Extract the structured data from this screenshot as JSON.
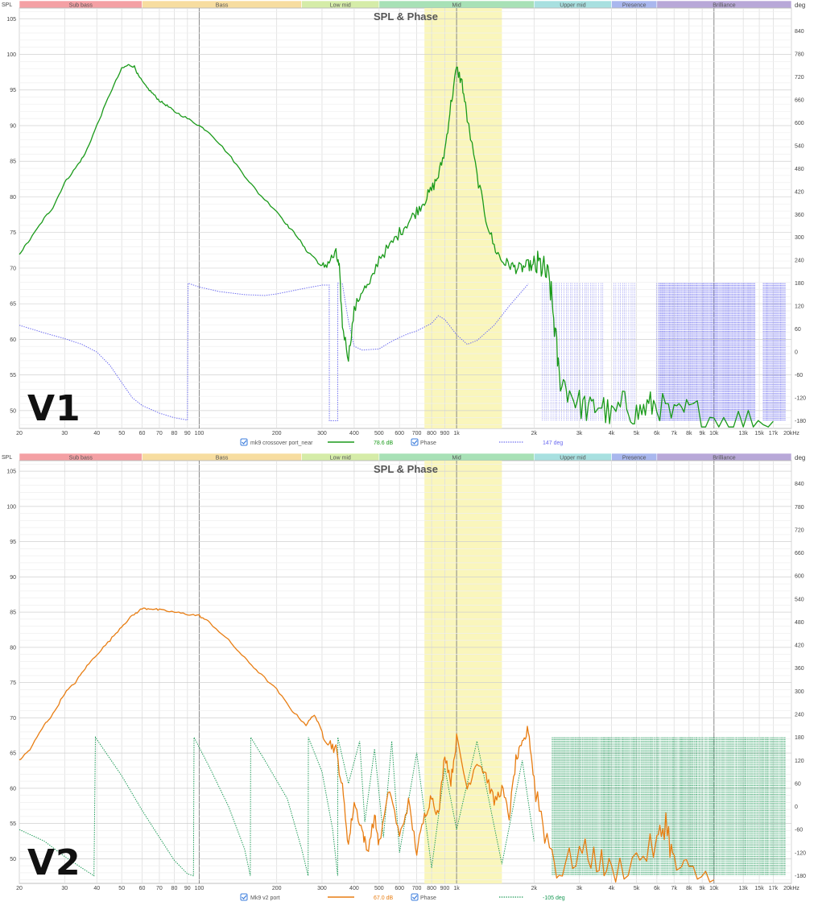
{
  "axis_labels": {
    "spl": "SPL",
    "deg": "deg"
  },
  "bands": [
    {
      "label": "Sub bass",
      "from": 20,
      "to": 60,
      "color": "#f4a0a4"
    },
    {
      "label": "Bass",
      "from": 60,
      "to": 250,
      "color": "#f7dda0"
    },
    {
      "label": "Low mid",
      "from": 250,
      "to": 500,
      "color": "#d5eca8"
    },
    {
      "label": "Mid",
      "from": 500,
      "to": 2000,
      "color": "#a8e1b6"
    },
    {
      "label": "Upper mid",
      "from": 2000,
      "to": 4000,
      "color": "#a8e0e0"
    },
    {
      "label": "Presence",
      "from": 4000,
      "to": 6000,
      "color": "#a9b7ee"
    },
    {
      "label": "Brilliance",
      "from": 6000,
      "to": 20000,
      "color": "#b8a8d8"
    }
  ],
  "x_ticks": [
    {
      "v": 20,
      "t": "20"
    },
    {
      "v": 30,
      "t": "30"
    },
    {
      "v": 40,
      "t": "40"
    },
    {
      "v": 50,
      "t": "50"
    },
    {
      "v": 60,
      "t": "60"
    },
    {
      "v": 70,
      "t": "70"
    },
    {
      "v": 80,
      "t": "80"
    },
    {
      "v": 90,
      "t": "90"
    },
    {
      "v": 100,
      "t": "100"
    },
    {
      "v": 200,
      "t": "200"
    },
    {
      "v": 300,
      "t": "300"
    },
    {
      "v": 400,
      "t": "400"
    },
    {
      "v": 500,
      "t": "500"
    },
    {
      "v": 600,
      "t": "600"
    },
    {
      "v": 700,
      "t": "700"
    },
    {
      "v": 800,
      "t": "800"
    },
    {
      "v": 900,
      "t": "900"
    },
    {
      "v": 1000,
      "t": "1k"
    },
    {
      "v": 2000,
      "t": "2k"
    },
    {
      "v": 3000,
      "t": "3k"
    },
    {
      "v": 4000,
      "t": "4k"
    },
    {
      "v": 5000,
      "t": "5k"
    },
    {
      "v": 6000,
      "t": "6k"
    },
    {
      "v": 7000,
      "t": "7k"
    },
    {
      "v": 8000,
      "t": "8k"
    },
    {
      "v": 9000,
      "t": "9k"
    },
    {
      "v": 10000,
      "t": "10k"
    },
    {
      "v": 13000,
      "t": "13k"
    },
    {
      "v": 15000,
      "t": "15k"
    },
    {
      "v": 17000,
      "t": "17k"
    },
    {
      "v": 20000,
      "t": "20kHz"
    }
  ],
  "charts": [
    {
      "title": "SPL & Phase",
      "version_label": "V1",
      "legend": {
        "trace_name": "mk9 crossover port_near",
        "trace_value": "78.6 dB",
        "phase_name": "Phase",
        "phase_value": "147 deg"
      }
    },
    {
      "title": "SPL & Phase",
      "version_label": "V2",
      "legend": {
        "trace_name": "Mk9 v2 port",
        "trace_value": "67.0 dB",
        "phase_name": "Phase",
        "phase_value": "-105 deg"
      }
    }
  ],
  "chart_data": [
    {
      "type": "line",
      "title": "SPL & Phase",
      "x_scale": "log",
      "xlim": [
        20,
        20000
      ],
      "ylim": [
        47.5,
        106.5
      ],
      "y2lim": [
        -200,
        900
      ],
      "y_ticks": [
        50,
        55,
        60,
        65,
        70,
        75,
        80,
        85,
        90,
        95,
        100,
        105
      ],
      "y2_ticks": [
        -180,
        -120,
        -60,
        0,
        60,
        120,
        180,
        240,
        300,
        360,
        420,
        480,
        540,
        600,
        660,
        720,
        780,
        840
      ],
      "highlight_range_hz": [
        750,
        1500
      ],
      "spl_color": "#1a9a1a",
      "phase_color": "#6a6af0",
      "series": [
        {
          "name": "mk9 crossover port_near",
          "style": "solid",
          "x": [
            20,
            22,
            25,
            27,
            30,
            33,
            36,
            40,
            45,
            50,
            53,
            56,
            58,
            62,
            66,
            70,
            75,
            80,
            90,
            100,
            110,
            130,
            150,
            170,
            200,
            220,
            240,
            260,
            280,
            300,
            320,
            340,
            350,
            360,
            380,
            400,
            430,
            460,
            500,
            550,
            600,
            650,
            700,
            750,
            800,
            850,
            900,
            950,
            1000,
            1050,
            1100,
            1200,
            1300,
            1400,
            1500,
            1600,
            1700,
            1800,
            1900,
            2000,
            2100,
            2200,
            2300,
            2400,
            2500,
            2700,
            3000,
            3300,
            3600,
            4000,
            4500,
            5000,
            5500,
            6000,
            7000,
            8000,
            10000,
            13000,
            17000
          ],
          "y": [
            72,
            74,
            77,
            78.5,
            82,
            84,
            86,
            90,
            94.5,
            98,
            98.5,
            98.3,
            97,
            95.5,
            94.5,
            93.5,
            92.8,
            92,
            91,
            90,
            89,
            86,
            83,
            80.5,
            78,
            76,
            74.5,
            72.5,
            71.5,
            70,
            71,
            72,
            70,
            62,
            57.5,
            64,
            67,
            67.5,
            71.5,
            73,
            75,
            76.5,
            78,
            79.5,
            81,
            83,
            86.5,
            93,
            98,
            96,
            91,
            83,
            77,
            73,
            71,
            70.5,
            70,
            70,
            70.5,
            70,
            70.5,
            69.5,
            68,
            62,
            55,
            53,
            51,
            50,
            51,
            49,
            51,
            49.5,
            50.5,
            51,
            49,
            50,
            49,
            48.5,
            48.5
          ]
        },
        {
          "name": "Phase",
          "style": "dotted",
          "x": [
            20,
            25,
            30,
            35,
            40,
            45,
            50,
            55,
            60,
            70,
            80,
            90,
            90.5,
            100,
            120,
            150,
            180,
            200,
            250,
            300,
            320,
            320.5,
            340,
            345,
            345.5,
            360,
            380,
            400,
            430,
            500,
            550,
            600,
            650,
            700,
            800,
            850,
            900,
            1000,
            1100,
            1200,
            1400,
            1600,
            1800,
            1900
          ],
          "y": [
            70,
            50,
            35,
            20,
            0,
            -35,
            -80,
            -120,
            -140,
            -160,
            -172,
            -178,
            180,
            170,
            158,
            150,
            148,
            152,
            165,
            175,
            175,
            -180,
            -180,
            -180,
            180,
            178,
            80,
            15,
            5,
            8,
            25,
            38,
            48,
            55,
            75,
            95,
            85,
            45,
            20,
            30,
            70,
            120,
            160,
            178
          ]
        }
      ]
    },
    {
      "type": "line",
      "title": "SPL & Phase",
      "x_scale": "log",
      "xlim": [
        20,
        20000
      ],
      "ylim": [
        46.5,
        106.5
      ],
      "y2lim": [
        -200,
        900
      ],
      "y_ticks": [
        50,
        55,
        60,
        65,
        70,
        75,
        80,
        85,
        90,
        95,
        100,
        105
      ],
      "y2_ticks": [
        -180,
        -120,
        -60,
        0,
        60,
        120,
        180,
        240,
        300,
        360,
        420,
        480,
        540,
        600,
        660,
        720,
        780,
        840
      ],
      "highlight_range_hz": [
        750,
        1500
      ],
      "spl_color": "#e87d12",
      "phase_color": "#1a9955",
      "series": [
        {
          "name": "Mk9 v2 port",
          "style": "solid",
          "x": [
            20,
            22,
            25,
            27,
            30,
            33,
            36,
            40,
            45,
            50,
            55,
            60,
            65,
            70,
            80,
            90,
            100,
            110,
            130,
            150,
            170,
            200,
            230,
            260,
            280,
            300,
            320,
            340,
            360,
            380,
            400,
            430,
            450,
            480,
            500,
            550,
            600,
            650,
            700,
            750,
            800,
            850,
            900,
            950,
            1000,
            1100,
            1200,
            1300,
            1400,
            1500,
            1600,
            1700,
            1800,
            1900,
            2000,
            2200,
            2500,
            3000,
            3500,
            4000,
            5000,
            6000,
            6500,
            7000,
            8000,
            10000
          ],
          "y": [
            64,
            65.5,
            69,
            70.5,
            73.5,
            75,
            77,
            79,
            81,
            83,
            84.5,
            85.5,
            85.5,
            85.3,
            85,
            84.7,
            84.5,
            83.5,
            81,
            78.5,
            76.5,
            74,
            71,
            69,
            70.5,
            68,
            66.5,
            65.5,
            60,
            52,
            58,
            54,
            51,
            56,
            52,
            60,
            53,
            58,
            51,
            56,
            59,
            56,
            65,
            61,
            67,
            60,
            64,
            62,
            58,
            60,
            56,
            64,
            66,
            68.5,
            61,
            54,
            48,
            51,
            50,
            48,
            50,
            52,
            55.5,
            49,
            48,
            47
          ]
        },
        {
          "name": "Phase",
          "style": "dotted",
          "x": [
            20,
            25,
            30,
            35,
            39,
            39.5,
            50,
            60,
            70,
            80,
            90,
            95,
            95.5,
            110,
            130,
            150,
            158,
            158.5,
            180,
            220,
            250,
            265,
            265.5,
            300,
            330,
            345,
            345.5,
            380,
            420,
            440,
            480,
            520,
            560,
            600,
            700,
            800,
            900,
            1000,
            1200,
            1500,
            1800,
            2000
          ],
          "y": [
            -60,
            -90,
            -130,
            -160,
            -180,
            180,
            80,
            -10,
            -80,
            -140,
            -175,
            -180,
            180,
            100,
            0,
            -110,
            -180,
            180,
            120,
            20,
            -110,
            -180,
            180,
            90,
            -60,
            -180,
            180,
            60,
            170,
            -40,
            150,
            -80,
            170,
            -120,
            140,
            -160,
            100,
            -60,
            170,
            -150,
            120,
            -90
          ]
        }
      ]
    }
  ]
}
